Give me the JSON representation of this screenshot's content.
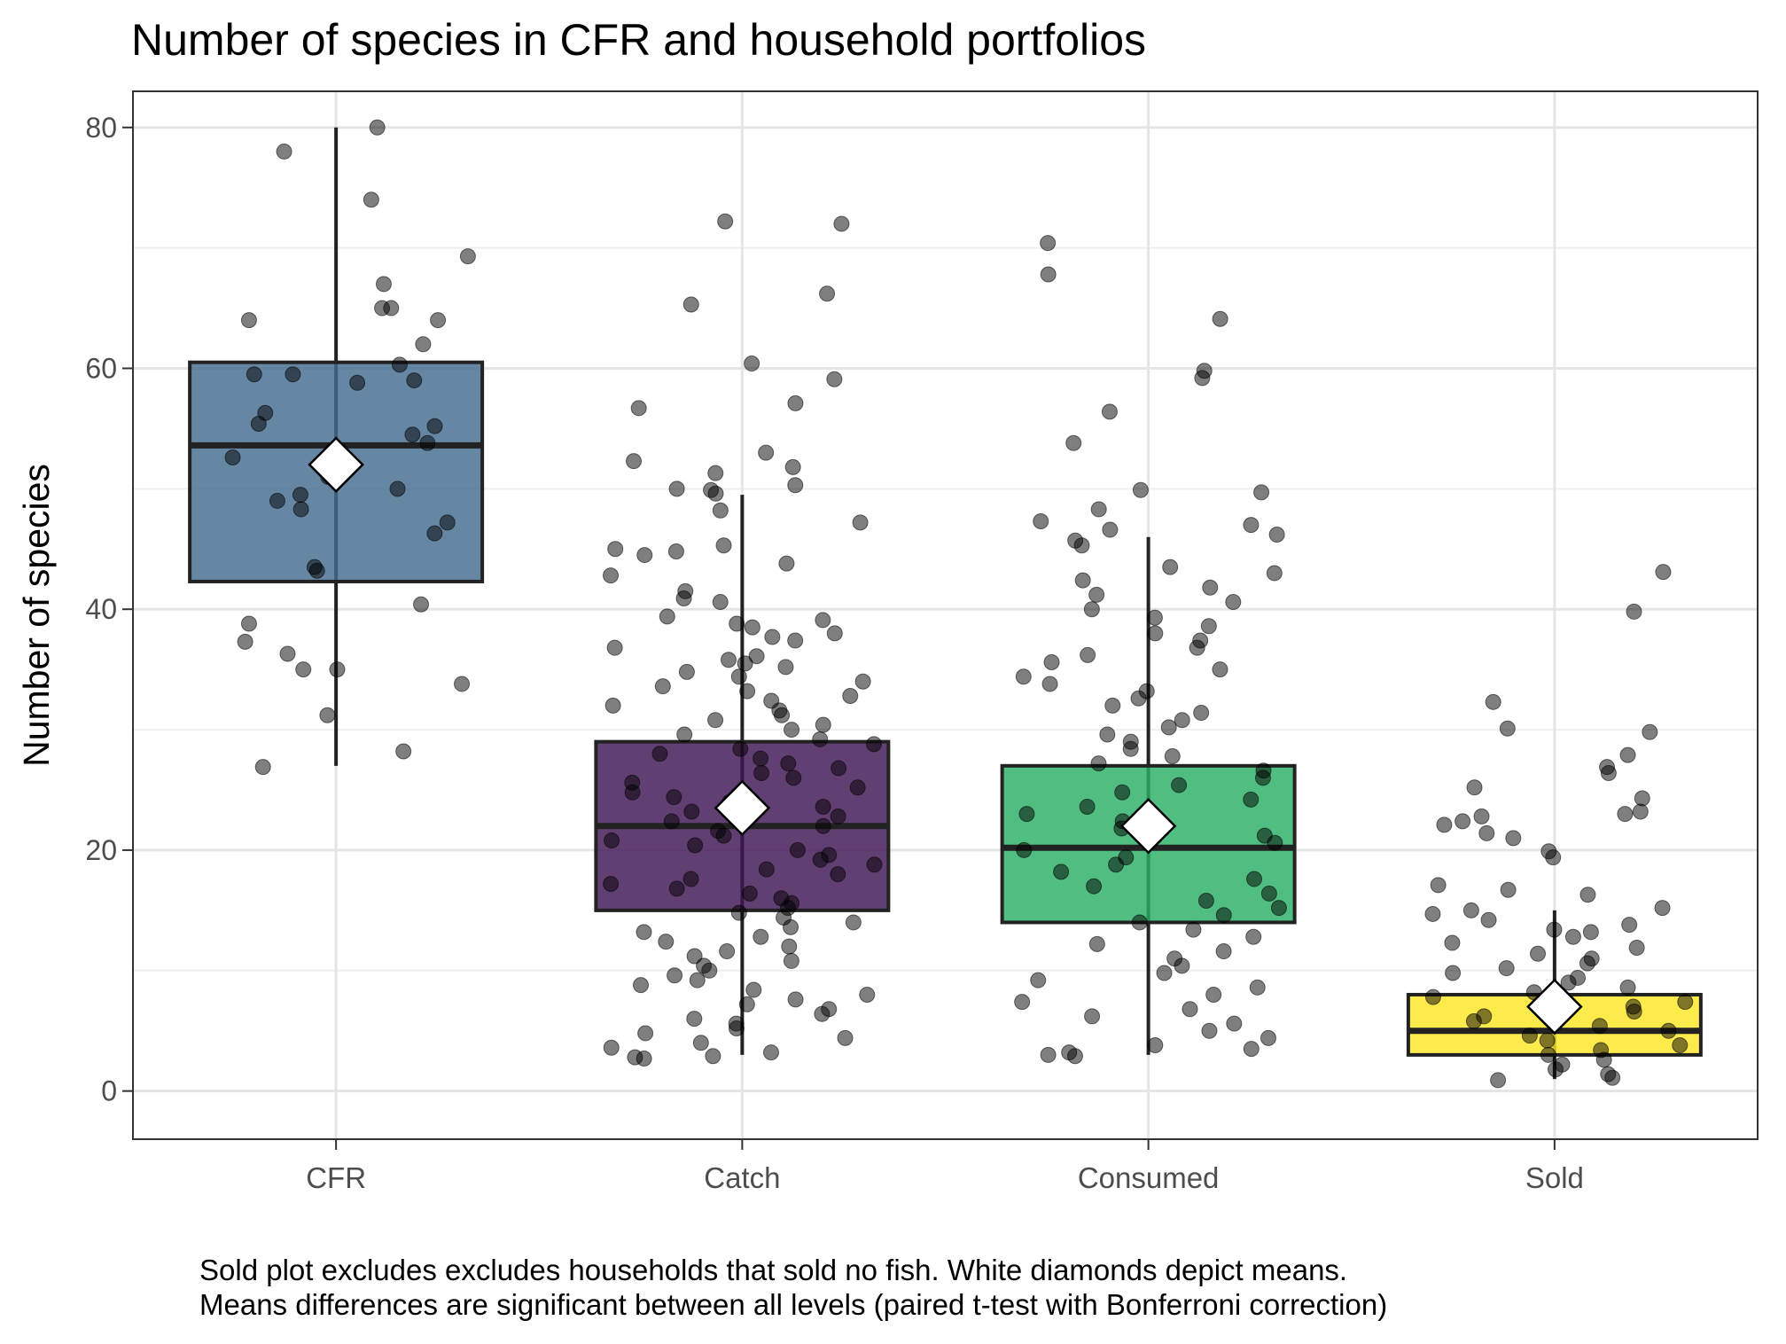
{
  "chart_data": {
    "type": "box",
    "title": "Number of species in CFR and household portfolios",
    "xlabel": "",
    "ylabel": "Number of species",
    "categories": [
      "CFR",
      "Catch",
      "Consumed",
      "Sold"
    ],
    "ylim": [
      -4,
      83
    ],
    "yticks": [
      0,
      20,
      40,
      60,
      80
    ],
    "grid": true,
    "legend": "none",
    "mean_marker": "white diamond",
    "boxes": [
      {
        "category": "CFR",
        "color": "#446c8f",
        "q1": 42.3,
        "median": 53.6,
        "q3": 60.5,
        "whisker_low": 27,
        "whisker_high": 80,
        "mean": 52
      },
      {
        "category": "Catch",
        "color": "#3f1554",
        "q1": 15,
        "median": 22,
        "q3": 29,
        "whisker_low": 3,
        "whisker_high": 49.5,
        "mean": 23.5
      },
      {
        "category": "Consumed",
        "color": "#2ab065",
        "q1": 14,
        "median": 20.2,
        "q3": 27,
        "whisker_low": 3,
        "whisker_high": 46,
        "mean": 22
      },
      {
        "category": "Sold",
        "color": "#fde725",
        "q1": 3,
        "median": 5,
        "q3": 8,
        "whisker_low": 1,
        "whisker_high": 15,
        "mean": 7
      }
    ],
    "points": {
      "CFR": [
        80,
        78,
        74,
        69.3,
        67,
        65,
        64,
        64,
        65,
        62,
        60.3,
        59.5,
        59,
        59.5,
        58.8,
        56.3,
        55.4,
        54.5,
        55.2,
        53.8,
        52.6,
        51,
        50,
        49.5,
        49,
        48.3,
        47.2,
        46.3,
        43.5,
        43.2,
        40.4,
        38.8,
        37.3,
        36.3,
        35,
        35,
        33.8,
        31.2,
        28.2,
        26.9
      ],
      "Catch": [
        72.2,
        72,
        66.2,
        65.3,
        60.4,
        59.1,
        57.1,
        56.7,
        53,
        52.3,
        51.8,
        51.3,
        50.3,
        50,
        49.9,
        49.6,
        48.2,
        47.2,
        45.3,
        45,
        44.8,
        44.5,
        43.8,
        42.8,
        41.5,
        40.9,
        40.6,
        39.4,
        39.1,
        38.8,
        38.5,
        38,
        37.7,
        37.4,
        36.8,
        36.1,
        35.8,
        35.5,
        35.2,
        34.8,
        34.4,
        34,
        33.6,
        33.2,
        32.8,
        32.4,
        32,
        31.6,
        31.2,
        30.8,
        30.4,
        30,
        29.6,
        29.2,
        28.8,
        28.4,
        28,
        27.6,
        27.2,
        26.8,
        26.4,
        26,
        25.6,
        25.2,
        24.8,
        24.4,
        24,
        23.6,
        23.2,
        22.8,
        22.4,
        22,
        21.6,
        21.2,
        20.8,
        20.4,
        20,
        19.6,
        19.2,
        18.8,
        18.4,
        18,
        17.6,
        17.2,
        16.8,
        16.4,
        16,
        15.6,
        15.2,
        14.8,
        14.4,
        14,
        13.6,
        13.2,
        12.8,
        12.4,
        12,
        11.6,
        11.2,
        10.8,
        10.4,
        10,
        9.6,
        9.2,
        8.8,
        8.4,
        8,
        7.6,
        7.2,
        6.8,
        6.4,
        6,
        5.6,
        5.2,
        4.8,
        4.4,
        4,
        3.6,
        3.2,
        2.9,
        2.8,
        2.7
      ],
      "Consumed": [
        70.4,
        67.8,
        64.1,
        59.8,
        59.2,
        56.4,
        53.8,
        49.9,
        49.7,
        48.3,
        47.3,
        47,
        46.6,
        46.2,
        45.7,
        45.3,
        43.5,
        43,
        42.4,
        41.8,
        41.2,
        40.6,
        40,
        39.3,
        38.6,
        38,
        37.4,
        36.8,
        36.2,
        35.6,
        35,
        34.4,
        33.8,
        33.2,
        32.6,
        32,
        31.4,
        30.8,
        30.2,
        29.6,
        29,
        28.4,
        27.8,
        27.2,
        26.6,
        26,
        25.4,
        24.8,
        24.2,
        23.6,
        23,
        22.4,
        21.8,
        21.2,
        20.6,
        20,
        19.4,
        18.8,
        18.2,
        17.6,
        17,
        16.4,
        15.8,
        15.2,
        14.6,
        14,
        13.4,
        12.8,
        12.2,
        11.6,
        11,
        10.4,
        9.8,
        9.2,
        8.6,
        8,
        7.4,
        6.8,
        6.2,
        5.6,
        5,
        4.4,
        3.8,
        3.5,
        3.2,
        3,
        2.9
      ],
      "Sold": [
        43.1,
        39.8,
        32.3,
        30.1,
        29.8,
        27.9,
        26.9,
        26.4,
        25.2,
        24.3,
        23.2,
        23,
        22.8,
        22.4,
        22.1,
        21.4,
        21,
        19.9,
        19.4,
        17.1,
        16.7,
        16.3,
        15.2,
        15,
        14.7,
        14.2,
        13.8,
        13.4,
        13.2,
        12.8,
        12.3,
        11.9,
        11.4,
        11,
        10.6,
        10.2,
        9.8,
        9.4,
        9,
        8.6,
        8.2,
        7.8,
        7.4,
        7,
        6.6,
        6.2,
        5.8,
        5.4,
        5,
        4.6,
        4.2,
        3.8,
        3.4,
        3,
        2.6,
        2.2,
        1.8,
        1.4,
        1.1,
        0.9
      ]
    },
    "caption_lines": [
      "Sold plot excludes excludes households that sold no fish. White diamonds depict means.",
      "Means differences are significant between all levels (paired t-test with Bonferroni correction)"
    ]
  }
}
